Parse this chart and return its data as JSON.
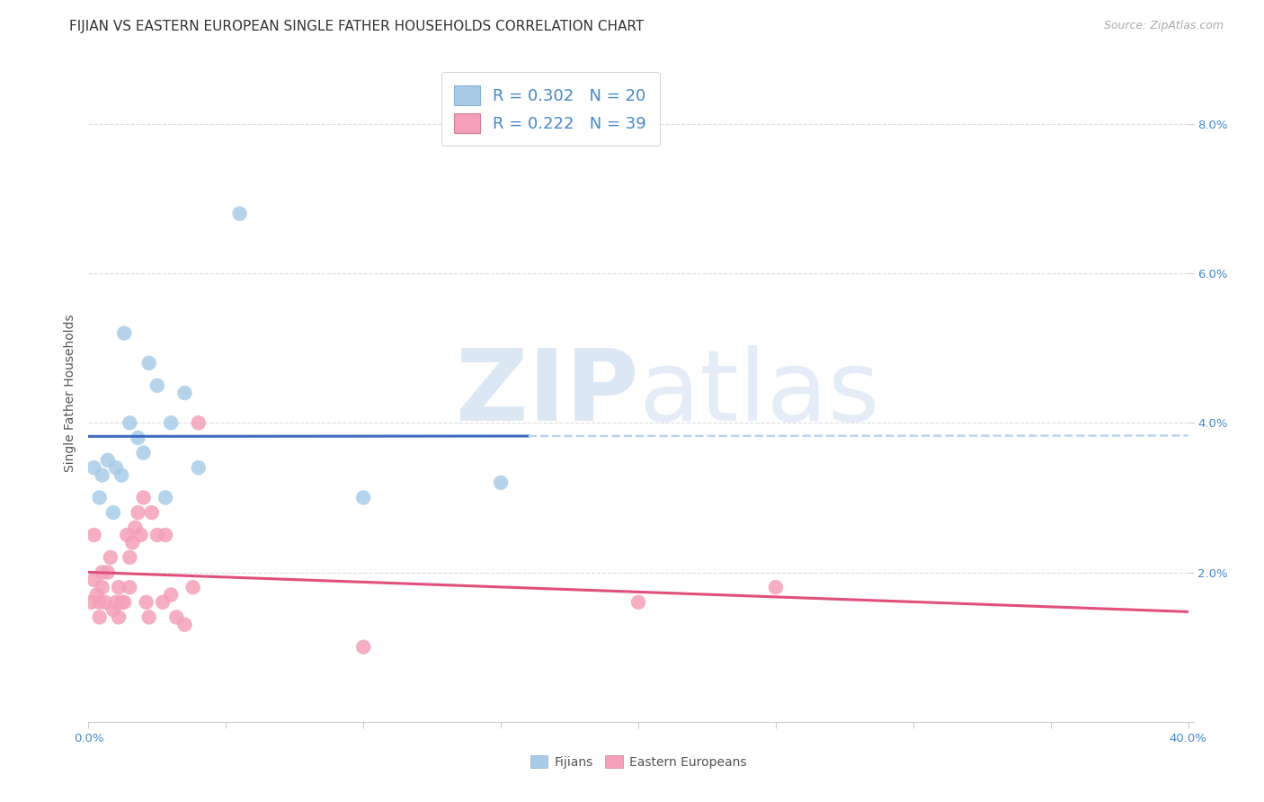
{
  "title": "FIJIAN VS EASTERN EUROPEAN SINGLE FATHER HOUSEHOLDS CORRELATION CHART",
  "source": "Source: ZipAtlas.com",
  "ylabel": "Single Father Households",
  "xlim": [
    0.0,
    0.4
  ],
  "ylim": [
    0.0,
    0.088
  ],
  "xtick_vals": [
    0.0,
    0.05,
    0.1,
    0.15,
    0.2,
    0.25,
    0.3,
    0.35,
    0.4
  ],
  "ytick_vals": [
    0.0,
    0.02,
    0.04,
    0.06,
    0.08
  ],
  "background_color": "#ffffff",
  "watermark_zip": "ZIP",
  "watermark_atlas": "atlas",
  "fijians_color": "#a8cce8",
  "fijians_line_color": "#3a6bbf",
  "fijians_R": 0.302,
  "fijians_N": 20,
  "fijians_x": [
    0.002,
    0.004,
    0.005,
    0.007,
    0.009,
    0.01,
    0.012,
    0.013,
    0.015,
    0.018,
    0.02,
    0.022,
    0.025,
    0.028,
    0.03,
    0.035,
    0.04,
    0.055,
    0.1,
    0.15
  ],
  "fijians_y": [
    0.034,
    0.03,
    0.033,
    0.035,
    0.028,
    0.034,
    0.033,
    0.052,
    0.04,
    0.038,
    0.036,
    0.048,
    0.045,
    0.03,
    0.04,
    0.044,
    0.034,
    0.068,
    0.03,
    0.032
  ],
  "ee_color": "#f4a0b8",
  "ee_line_color": "#e0507a",
  "ee_R": 0.222,
  "ee_N": 39,
  "ee_x": [
    0.001,
    0.002,
    0.002,
    0.003,
    0.004,
    0.004,
    0.005,
    0.005,
    0.006,
    0.007,
    0.008,
    0.009,
    0.01,
    0.011,
    0.011,
    0.012,
    0.013,
    0.014,
    0.015,
    0.015,
    0.016,
    0.017,
    0.018,
    0.019,
    0.02,
    0.021,
    0.022,
    0.023,
    0.025,
    0.027,
    0.028,
    0.03,
    0.032,
    0.035,
    0.038,
    0.04,
    0.1,
    0.2,
    0.25
  ],
  "ee_y": [
    0.016,
    0.025,
    0.019,
    0.017,
    0.016,
    0.014,
    0.018,
    0.02,
    0.016,
    0.02,
    0.022,
    0.015,
    0.016,
    0.018,
    0.014,
    0.016,
    0.016,
    0.025,
    0.022,
    0.018,
    0.024,
    0.026,
    0.028,
    0.025,
    0.03,
    0.016,
    0.014,
    0.028,
    0.025,
    0.016,
    0.025,
    0.017,
    0.014,
    0.013,
    0.018,
    0.04,
    0.01,
    0.016,
    0.018
  ],
  "dashed_ext_color": "#b8d4ee",
  "legend_fijians_label": "Fijians",
  "legend_ee_label": "Eastern Europeans",
  "title_fontsize": 11,
  "tick_fontsize": 9.5,
  "legend_fontsize": 13,
  "source_fontsize": 9
}
